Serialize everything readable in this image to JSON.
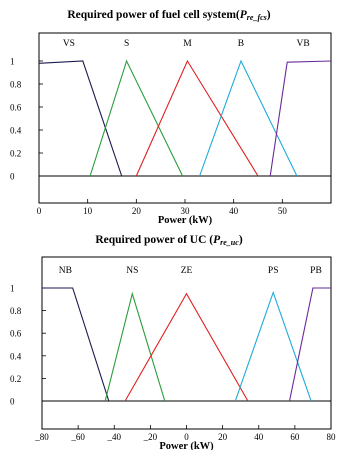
{
  "chart_data": [
    {
      "type": "line",
      "title_text": "Required power of fuel cell system(",
      "title_symbol": "P",
      "title_subscript": "re_fcs",
      "title_close": ")",
      "xlabel": "Power (kW)",
      "ylabel": "",
      "xlim": [
        0,
        60
      ],
      "ylim": [
        0,
        1
      ],
      "xticks": [
        "0",
        "10",
        "20",
        "30",
        "40",
        "50"
      ],
      "yticks": [
        "0",
        "0.2",
        "0.4",
        "0.6",
        "0.8",
        "1"
      ],
      "grid": false,
      "series": [
        {
          "name": "VS",
          "color": "#1a1a4e",
          "x": [
            0,
            9,
            17
          ],
          "y": [
            0.98,
            1,
            0
          ]
        },
        {
          "name": "S",
          "color": "#2a9d3a",
          "x": [
            10.5,
            18,
            29.5
          ],
          "y": [
            0,
            1,
            0
          ]
        },
        {
          "name": "M",
          "color": "#e02020",
          "x": [
            20,
            30.5,
            45
          ],
          "y": [
            0,
            1,
            0
          ]
        },
        {
          "name": "B",
          "color": "#1eaad8",
          "x": [
            33,
            41.5,
            53
          ],
          "y": [
            0,
            1,
            0
          ]
        },
        {
          "name": "VB",
          "color": "#6a2a9a",
          "x": [
            47.5,
            51,
            60
          ],
          "y": [
            0,
            0.99,
            1
          ]
        }
      ]
    },
    {
      "type": "line",
      "title_text": "Required power of UC (",
      "title_symbol": "P",
      "title_subscript": "re_uc",
      "title_close": ")",
      "xlabel": "Power (kW)",
      "ylabel": "",
      "xlim": [
        -80,
        80
      ],
      "ylim": [
        0,
        1
      ],
      "xticks": [
        "_80",
        "_60",
        "_40",
        "_20",
        "0",
        "20",
        "40",
        "60",
        "80"
      ],
      "yticks": [
        "0",
        "0.2",
        "0.4",
        "0.6",
        "0.8",
        "1"
      ],
      "grid": false,
      "series": [
        {
          "name": "NB",
          "color": "#1a1a4e",
          "x": [
            -80,
            -63,
            -43
          ],
          "y": [
            1,
            1,
            0
          ]
        },
        {
          "name": "NS",
          "color": "#2a9d3a",
          "x": [
            -45,
            -30,
            -12
          ],
          "y": [
            0,
            0.95,
            0
          ]
        },
        {
          "name": "ZE",
          "color": "#e02020",
          "x": [
            -34,
            0,
            34
          ],
          "y": [
            0,
            0.95,
            0
          ]
        },
        {
          "name": "PS",
          "color": "#1eaad8",
          "x": [
            27,
            48,
            69
          ],
          "y": [
            0,
            0.96,
            0
          ]
        },
        {
          "name": "PB",
          "color": "#6a2a9a",
          "x": [
            57,
            70,
            80
          ],
          "y": [
            0,
            1,
            1
          ]
        }
      ]
    }
  ]
}
